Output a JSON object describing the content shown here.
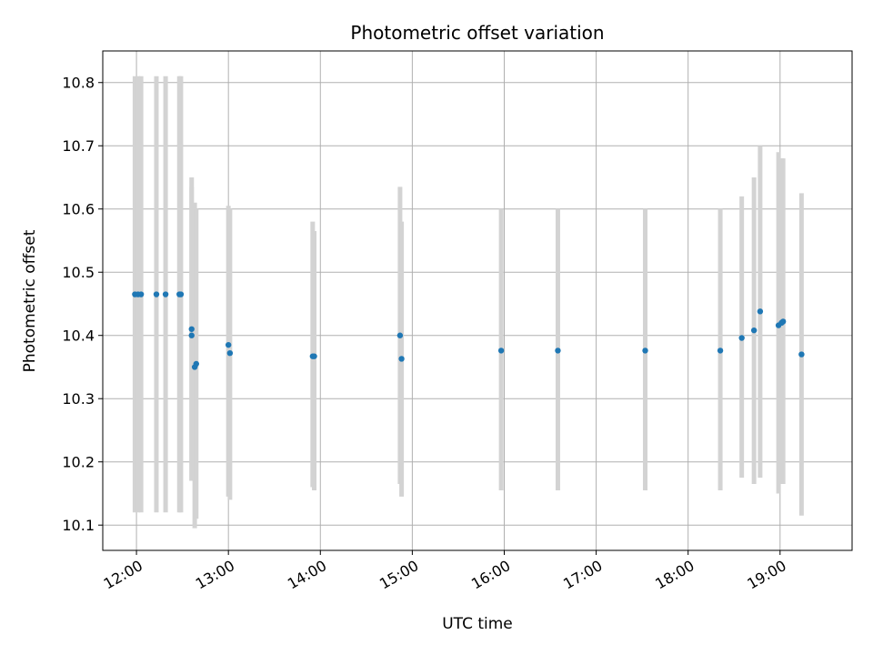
{
  "chart_data": {
    "type": "scatter",
    "title": "Photometric offset variation",
    "xlabel": "UTC time",
    "ylabel": "Photometric offset",
    "xlim": [
      "11:38",
      "19:47"
    ],
    "ylim": [
      10.06,
      10.85
    ],
    "xticks": [
      "12:00",
      "13:00",
      "14:00",
      "15:00",
      "16:00",
      "17:00",
      "18:00",
      "19:00"
    ],
    "yticks": [
      "10.1",
      "10.2",
      "10.3",
      "10.4",
      "10.5",
      "10.6",
      "10.7",
      "10.8"
    ],
    "grid": true,
    "marker_color": "#1f77b4",
    "errorbar_color": "#d3d3d3",
    "points": [
      {
        "x": "11:59",
        "y": 10.465,
        "ylow": 10.12,
        "yhigh": 10.81
      },
      {
        "x": "12:01",
        "y": 10.465,
        "ylow": 10.12,
        "yhigh": 10.81
      },
      {
        "x": "12:03",
        "y": 10.465,
        "ylow": 10.12,
        "yhigh": 10.81
      },
      {
        "x": "12:13",
        "y": 10.465,
        "ylow": 10.12,
        "yhigh": 10.81
      },
      {
        "x": "12:19",
        "y": 10.465,
        "ylow": 10.12,
        "yhigh": 10.81
      },
      {
        "x": "12:28",
        "y": 10.465,
        "ylow": 10.12,
        "yhigh": 10.81
      },
      {
        "x": "12:29",
        "y": 10.465,
        "ylow": 10.12,
        "yhigh": 10.81
      },
      {
        "x": "12:36",
        "y": 10.41,
        "ylow": 10.17,
        "yhigh": 10.65
      },
      {
        "x": "12:36",
        "y": 10.4,
        "ylow": 10.17,
        "yhigh": 10.635
      },
      {
        "x": "12:38",
        "y": 10.35,
        "ylow": 10.095,
        "yhigh": 10.61
      },
      {
        "x": "12:39",
        "y": 10.355,
        "ylow": 10.11,
        "yhigh": 10.6
      },
      {
        "x": "13:00",
        "y": 10.385,
        "ylow": 10.145,
        "yhigh": 10.605
      },
      {
        "x": "13:01",
        "y": 10.372,
        "ylow": 10.14,
        "yhigh": 10.6
      },
      {
        "x": "13:55",
        "y": 10.367,
        "ylow": 10.16,
        "yhigh": 10.58
      },
      {
        "x": "13:56",
        "y": 10.367,
        "ylow": 10.155,
        "yhigh": 10.565
      },
      {
        "x": "14:52",
        "y": 10.4,
        "ylow": 10.165,
        "yhigh": 10.635
      },
      {
        "x": "14:53",
        "y": 10.363,
        "ylow": 10.145,
        "yhigh": 10.58
      },
      {
        "x": "15:58",
        "y": 10.376,
        "ylow": 10.155,
        "yhigh": 10.6
      },
      {
        "x": "16:35",
        "y": 10.376,
        "ylow": 10.155,
        "yhigh": 10.6
      },
      {
        "x": "17:32",
        "y": 10.376,
        "ylow": 10.155,
        "yhigh": 10.6
      },
      {
        "x": "18:21",
        "y": 10.376,
        "ylow": 10.155,
        "yhigh": 10.6
      },
      {
        "x": "18:35",
        "y": 10.396,
        "ylow": 10.175,
        "yhigh": 10.62
      },
      {
        "x": "18:43",
        "y": 10.408,
        "ylow": 10.165,
        "yhigh": 10.65
      },
      {
        "x": "18:47",
        "y": 10.438,
        "ylow": 10.175,
        "yhigh": 10.7
      },
      {
        "x": "18:59",
        "y": 10.416,
        "ylow": 10.15,
        "yhigh": 10.69
      },
      {
        "x": "19:01",
        "y": 10.42,
        "ylow": 10.165,
        "yhigh": 10.68
      },
      {
        "x": "19:02",
        "y": 10.422,
        "ylow": 10.165,
        "yhigh": 10.68
      },
      {
        "x": "19:14",
        "y": 10.37,
        "ylow": 10.115,
        "yhigh": 10.625
      }
    ]
  }
}
